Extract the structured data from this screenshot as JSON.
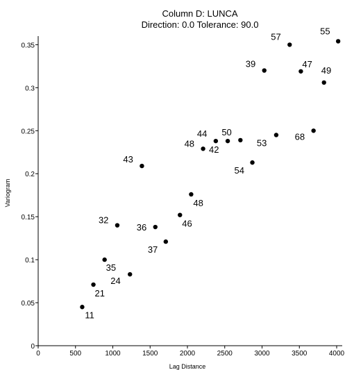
{
  "chart_data": {
    "type": "scatter",
    "title": "Column D:  LUNCA",
    "subtitle": "Direction: 0.0   Tolerance: 90.0",
    "xlabel": "Lag Distance",
    "ylabel": "Variogram",
    "xlim": [
      0,
      4000
    ],
    "ylim": [
      0,
      0.36
    ],
    "xticks": [
      "0",
      "500",
      "1000",
      "1500",
      "2000",
      "2500",
      "3000",
      "3500",
      "4000"
    ],
    "yticks": [
      "0",
      "0.05",
      "0.1",
      "0.15",
      "0.2",
      "0.25",
      "0.3",
      "0.35"
    ],
    "grid": false,
    "marker_color": "#000000",
    "points": [
      {
        "x": 590,
        "y": 0.045,
        "label": "11"
      },
      {
        "x": 740,
        "y": 0.071,
        "label": "21"
      },
      {
        "x": 890,
        "y": 0.1,
        "label": "35"
      },
      {
        "x": 1060,
        "y": 0.14,
        "label": "32"
      },
      {
        "x": 1230,
        "y": 0.083,
        "label": "24"
      },
      {
        "x": 1390,
        "y": 0.209,
        "label": "43"
      },
      {
        "x": 1570,
        "y": 0.138,
        "label": "36"
      },
      {
        "x": 1710,
        "y": 0.121,
        "label": "37"
      },
      {
        "x": 1900,
        "y": 0.152,
        "label": "46"
      },
      {
        "x": 2050,
        "y": 0.176,
        "label": "48"
      },
      {
        "x": 2210,
        "y": 0.229,
        "label": "48"
      },
      {
        "x": 2380,
        "y": 0.238,
        "label": "44"
      },
      {
        "x": 2540,
        "y": 0.238,
        "label": "42"
      },
      {
        "x": 2710,
        "y": 0.239,
        "label": "50"
      },
      {
        "x": 2870,
        "y": 0.213,
        "label": "54"
      },
      {
        "x": 3030,
        "y": 0.32,
        "label": "39"
      },
      {
        "x": 3190,
        "y": 0.245,
        "label": "53"
      },
      {
        "x": 3370,
        "y": 0.35,
        "label": "57"
      },
      {
        "x": 3520,
        "y": 0.319,
        "label": "47"
      },
      {
        "x": 3690,
        "y": 0.25,
        "label": "68"
      },
      {
        "x": 3830,
        "y": 0.306,
        "label": "49"
      },
      {
        "x": 4020,
        "y": 0.354,
        "label": "55"
      }
    ]
  }
}
